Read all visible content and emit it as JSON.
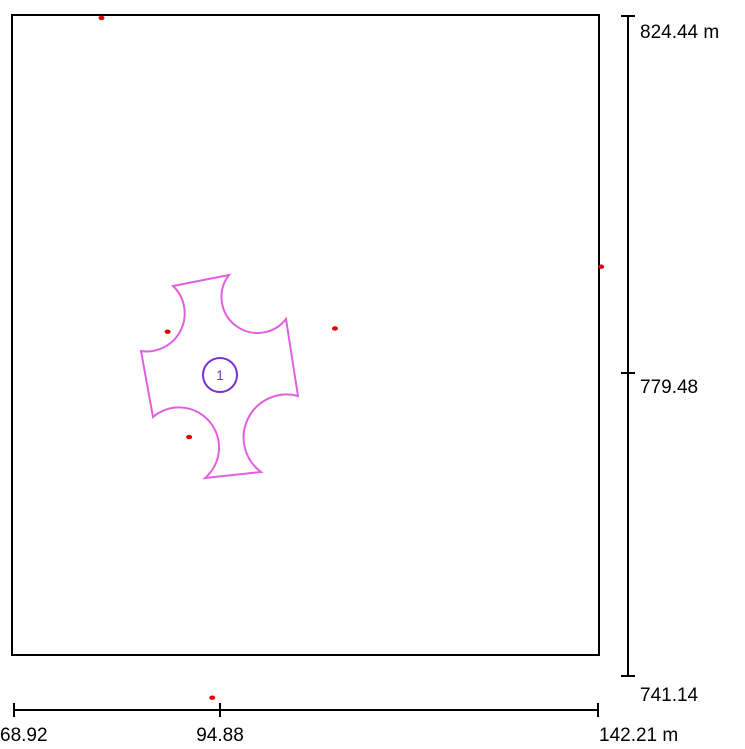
{
  "map": {
    "x_axis": {
      "min_label": "68.92",
      "mid_label": "94.88",
      "max_label": "142.21 m",
      "range": [
        68.92,
        142.21
      ],
      "mid_value": 94.88
    },
    "y_axis": {
      "max_label": "824.44 m",
      "mid_label": "779.48",
      "min_label": "741.14",
      "range": [
        741.14,
        824.44
      ],
      "mid_value": 779.48
    },
    "zone": {
      "id_label": "1",
      "outline_color": "#e060e0",
      "label_color": "#7b2fd0"
    },
    "points": {
      "color": "#e00000",
      "items": [
        {
          "x": 79.9,
          "y": 824.2
        },
        {
          "x": 142.6,
          "y": 792.8
        },
        {
          "x": 109.2,
          "y": 785.0
        },
        {
          "x": 88.2,
          "y": 784.6
        },
        {
          "x": 90.9,
          "y": 771.3
        },
        {
          "x": 93.8,
          "y": 738.4
        }
      ]
    }
  }
}
